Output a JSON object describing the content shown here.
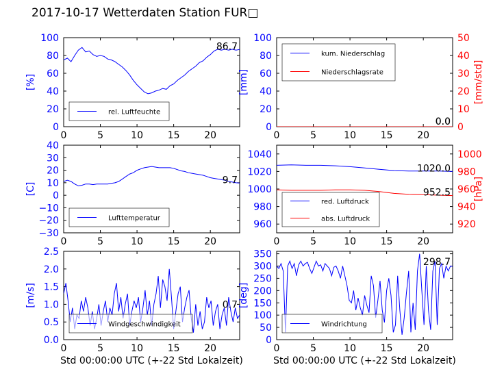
{
  "title": "2017-10-17 Wetterdaten Station FUR□",
  "chart_data": [
    {
      "type": "line",
      "panel": "humidity",
      "ylabel": "[%]",
      "xlim": [
        0,
        24
      ],
      "ylim": [
        0,
        100
      ],
      "xticks": [
        "0",
        "5",
        "10",
        "15",
        "20"
      ],
      "yticks": [
        "0",
        "20",
        "40",
        "60",
        "80",
        "100"
      ],
      "legend": "lower-left",
      "last_value_label": "86.7",
      "series": [
        {
          "name": "rel. Luftfeuchte",
          "color": "#0000ff",
          "x": [
            0,
            0.5,
            1,
            1.5,
            2,
            2.5,
            3,
            3.5,
            4,
            4.5,
            5,
            5.5,
            6,
            6.5,
            7,
            7.5,
            8,
            8.5,
            9,
            9.5,
            10,
            10.5,
            11,
            11.5,
            12,
            12.5,
            13,
            13.5,
            14,
            14.5,
            15,
            15.5,
            16,
            16.5,
            17,
            17.5,
            18,
            18.5,
            19,
            19.5,
            20,
            20.5,
            21,
            21.5,
            22,
            22.5,
            23,
            23.5,
            24
          ],
          "y": [
            75,
            77,
            73,
            80,
            86,
            89,
            84,
            85,
            81,
            79,
            80,
            79,
            76,
            75,
            73,
            70,
            67,
            63,
            58,
            52,
            47,
            43,
            39,
            37,
            38,
            40,
            41,
            43,
            42,
            46,
            48,
            52,
            55,
            58,
            62,
            65,
            68,
            72,
            74,
            78,
            81,
            85,
            87,
            86,
            87,
            86,
            87,
            86,
            86.7
          ]
        }
      ]
    },
    {
      "type": "line",
      "panel": "precipitation",
      "ylabel": "[mm]",
      "y2label": "[mm/std]",
      "xlim": [
        0,
        24
      ],
      "ylim": [
        0,
        100
      ],
      "y2lim": [
        0,
        50
      ],
      "xticks": [
        "0",
        "5",
        "10",
        "15",
        "20"
      ],
      "yticks": [
        "0",
        "20",
        "40",
        "60",
        "80",
        "100"
      ],
      "y2ticks": [
        "0",
        "10",
        "20",
        "30",
        "40",
        "50"
      ],
      "legend": "top-left",
      "last_value_label": "0.0",
      "last_value_label_2": "0.0",
      "series": [
        {
          "name": "kum. Niederschlag",
          "color": "#0000ff",
          "x": [
            0,
            24
          ],
          "y": [
            0,
            0
          ]
        },
        {
          "name": "Niederschlagsrate",
          "color": "#ff0000",
          "x": [
            0,
            24
          ],
          "y": [
            0,
            0
          ]
        }
      ]
    },
    {
      "type": "line",
      "panel": "temperature",
      "ylabel": "[C]",
      "xlim": [
        0,
        24
      ],
      "ylim": [
        -30,
        40
      ],
      "xticks": [
        "0",
        "5",
        "10",
        "15",
        "20"
      ],
      "yticks": [
        "−30",
        "−20",
        "−10",
        "0",
        "10",
        "20",
        "30",
        "40"
      ],
      "legend": "lower-left",
      "last_value_label": "9.7",
      "series": [
        {
          "name": "Lufttemperatur",
          "color": "#0000ff",
          "x": [
            0,
            0.5,
            1,
            1.5,
            2,
            2.5,
            3,
            3.5,
            4,
            4.5,
            5,
            5.5,
            6,
            6.5,
            7,
            7.5,
            8,
            8.5,
            9,
            9.5,
            10,
            10.5,
            11,
            11.5,
            12,
            12.5,
            13,
            13.5,
            14,
            14.5,
            15,
            15.5,
            16,
            16.5,
            17,
            17.5,
            18,
            18.5,
            19,
            19.5,
            20,
            20.5,
            21,
            21.5,
            22,
            22.5,
            23,
            23.5,
            24
          ],
          "y": [
            11,
            12,
            11,
            9,
            7.5,
            8,
            9,
            9,
            8.5,
            9,
            9,
            9,
            9,
            9.5,
            10,
            11,
            13,
            15,
            17,
            18,
            20,
            21,
            22,
            22.5,
            23,
            22.5,
            22,
            22,
            22,
            22,
            21.5,
            20.5,
            19.5,
            19,
            18,
            17.5,
            17,
            16.5,
            16,
            15,
            14,
            13.5,
            13,
            12.5,
            12,
            11,
            10.5,
            10,
            9.7
          ]
        }
      ]
    },
    {
      "type": "line",
      "panel": "pressure",
      "ylabel": "",
      "y2label": "[hPa]",
      "xlim": [
        0,
        24
      ],
      "ylim": [
        950,
        1050
      ],
      "y2lim": [
        910,
        1010
      ],
      "xticks": [
        "0",
        "5",
        "10",
        "15",
        "20"
      ],
      "yticks": [
        "960",
        "980",
        "1000",
        "1020",
        "1040"
      ],
      "y2ticks": [
        "920",
        "940",
        "960",
        "980",
        "1000"
      ],
      "legend": "lower-left",
      "last_value_label": "1020.0",
      "last_value_label_2": "952.5",
      "series": [
        {
          "name": "red. Luftdruck",
          "color": "#0000ff",
          "x": [
            0,
            2,
            4,
            6,
            8,
            10,
            12,
            14,
            16,
            18,
            20,
            22,
            24
          ],
          "y": [
            1027,
            1027.5,
            1027,
            1027,
            1026.5,
            1025.5,
            1024,
            1022.5,
            1021,
            1020.5,
            1020.5,
            1020.5,
            1020
          ]
        },
        {
          "name": "abs. Luftdruck",
          "color": "#ff0000",
          "x": [
            0,
            2,
            4,
            6,
            8,
            10,
            12,
            14,
            16,
            18,
            20,
            22,
            24
          ],
          "y": [
            959,
            958.5,
            958.5,
            958.5,
            959,
            959,
            958.5,
            957,
            955,
            954,
            953.5,
            953,
            952.5
          ]
        }
      ]
    },
    {
      "type": "line",
      "panel": "wind_speed",
      "ylabel": "[m/s]",
      "xlabel": "Std 00:00:00 UTC (+-22 Std Lokalzeit)",
      "xlim": [
        0,
        24
      ],
      "ylim": [
        0,
        2.5
      ],
      "xticks": [
        "0",
        "5",
        "10",
        "15",
        "20"
      ],
      "yticks": [
        "0.0",
        "0.5",
        "1.0",
        "1.5",
        "2.0",
        "2.5"
      ],
      "legend": "lower-left",
      "last_value_label": "0.7",
      "series": [
        {
          "name": "Windgeschwindigkeit",
          "color": "#0000ff",
          "x": [
            0,
            0.3,
            0.6,
            0.9,
            1.2,
            1.5,
            1.8,
            2.1,
            2.4,
            2.7,
            3,
            3.3,
            3.6,
            3.9,
            4.2,
            4.5,
            4.8,
            5.1,
            5.4,
            5.7,
            6,
            6.3,
            6.6,
            6.9,
            7.2,
            7.5,
            7.8,
            8.1,
            8.4,
            8.7,
            9,
            9.3,
            9.6,
            9.9,
            10.2,
            10.5,
            10.8,
            11.1,
            11.4,
            11.7,
            12,
            12.3,
            12.6,
            12.9,
            13.2,
            13.5,
            13.8,
            14.1,
            14.4,
            14.7,
            15,
            15.3,
            15.6,
            15.9,
            16.2,
            16.5,
            16.8,
            17.1,
            17.4,
            17.7,
            18,
            18.3,
            18.6,
            18.9,
            19.2,
            19.5,
            19.8,
            20.1,
            20.4,
            20.7,
            21,
            21.3,
            21.6,
            21.9,
            22.2,
            22.5,
            22.8,
            23.1,
            23.4,
            23.7,
            24
          ],
          "y": [
            1.3,
            1.6,
            1.1,
            0.5,
            0.9,
            0.3,
            0.7,
            0.6,
            1.1,
            0.8,
            1.2,
            0.9,
            0.4,
            0.8,
            0.3,
            0.6,
            1.0,
            0.4,
            0.8,
            1.1,
            0.5,
            0.9,
            0.7,
            1.3,
            1.6,
            0.8,
            1.2,
            0.6,
            1.0,
            1.3,
            0.4,
            0.8,
            1.1,
            0.9,
            1.2,
            0.5,
            0.9,
            1.4,
            0.7,
            1.1,
            0.4,
            1.0,
            1.3,
            1.8,
            0.9,
            1.7,
            1.5,
            1.1,
            2.0,
            1.2,
            0.3,
            0.8,
            1.3,
            1.5,
            0.5,
            0.9,
            1.2,
            1.4,
            0.6,
            0.2,
            1.0,
            0.4,
            0.8,
            0.3,
            0.5,
            1.2,
            0.9,
            1.1,
            0.4,
            0.8,
            1.0,
            0.3,
            0.7,
            0.9,
            0.4,
            1.2,
            0.8,
            0.5,
            0.9,
            0.6,
            0.7
          ]
        }
      ]
    },
    {
      "type": "line",
      "panel": "wind_direction",
      "ylabel": "[deg]",
      "xlabel": "Std 00:00:00 UTC (+-22 Std Lokalzeit)",
      "xlim": [
        0,
        24
      ],
      "ylim": [
        0,
        360
      ],
      "xticks": [
        "0",
        "5",
        "10",
        "15",
        "20"
      ],
      "yticks": [
        "0",
        "50",
        "100",
        "150",
        "200",
        "250",
        "300",
        "350"
      ],
      "legend": "lower-left",
      "last_value_label": "298.7",
      "series": [
        {
          "name": "Windrichtung",
          "color": "#0000ff",
          "x": [
            0,
            0.3,
            0.6,
            0.9,
            1.2,
            1.5,
            1.8,
            2.1,
            2.4,
            2.7,
            3,
            3.3,
            3.6,
            3.9,
            4.2,
            4.5,
            4.8,
            5.1,
            5.4,
            5.7,
            6,
            6.3,
            6.6,
            6.9,
            7.2,
            7.5,
            7.8,
            8.1,
            8.4,
            8.7,
            9,
            9.3,
            9.6,
            9.9,
            10.2,
            10.5,
            10.8,
            11.1,
            11.4,
            11.7,
            12,
            12.3,
            12.6,
            12.9,
            13.2,
            13.5,
            13.8,
            14.1,
            14.4,
            14.7,
            15,
            15.3,
            15.6,
            15.9,
            16.2,
            16.5,
            16.8,
            17.1,
            17.4,
            17.7,
            18,
            18.3,
            18.6,
            18.9,
            19.2,
            19.5,
            19.8,
            20.1,
            20.4,
            20.7,
            21,
            21.3,
            21.6,
            21.9,
            22.2,
            22.5,
            22.8,
            23.1,
            23.4,
            23.7,
            24
          ],
          "y": [
            300,
            290,
            310,
            280,
            30,
            300,
            320,
            290,
            310,
            260,
            305,
            320,
            300,
            310,
            315,
            290,
            270,
            295,
            320,
            300,
            305,
            280,
            310,
            300,
            290,
            260,
            295,
            300,
            280,
            250,
            300,
            260,
            220,
            160,
            150,
            200,
            120,
            170,
            130,
            100,
            180,
            140,
            110,
            260,
            220,
            90,
            160,
            240,
            120,
            70,
            200,
            250,
            180,
            30,
            60,
            260,
            120,
            20,
            90,
            190,
            280,
            30,
            150,
            40,
            280,
            350,
            200,
            60,
            300,
            120,
            40,
            280,
            320,
            60,
            290,
            310,
            250,
            300,
            280,
            300,
            298.7
          ]
        }
      ]
    }
  ]
}
